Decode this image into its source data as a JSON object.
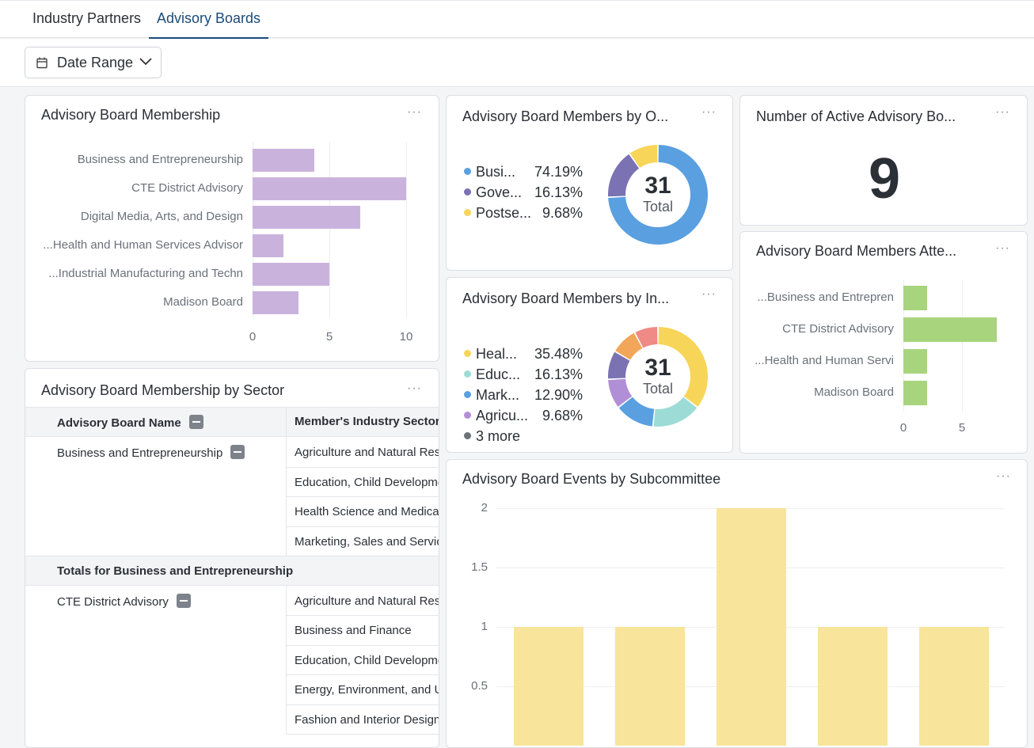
{
  "tabs": [
    "Industry Partners",
    "Advisory Boards"
  ],
  "filter": {
    "date_range_label": "Date Range"
  },
  "membership": {
    "title": "Advisory Board Membership",
    "menu": "···",
    "categories": [
      "Business and Entrepreneurship",
      "CTE District Advisory",
      "Digital Media, Arts, and Design",
      "Health and Human Services Advisor...",
      "Industrial Manufacturing and Techn...",
      "Madison Board"
    ],
    "values": [
      4,
      10,
      7,
      2,
      5,
      3
    ],
    "ticks": [
      "0",
      "5",
      "10"
    ],
    "xlim": [
      0,
      10
    ],
    "color": "#c9b3dd"
  },
  "by_org": {
    "title": "Advisory Board Members by O...",
    "menu": "···",
    "legend": [
      {
        "label": "Busi...",
        "pct": "74.19%",
        "color": "#5a9fe0"
      },
      {
        "label": "Gove...",
        "pct": "16.13%",
        "color": "#7a72b3"
      },
      {
        "label": "Postse...",
        "pct": "9.68%",
        "color": "#f7d558"
      }
    ],
    "total_value": "31",
    "total_label": "Total"
  },
  "active": {
    "title": "Number of Active Advisory Bo...",
    "menu": "···",
    "value": "9"
  },
  "by_industry": {
    "title": "Advisory Board Members by In...",
    "menu": "···",
    "legend": [
      {
        "label": "Heal...",
        "pct": "35.48%",
        "color": "#f7d558"
      },
      {
        "label": "Educ...",
        "pct": "16.13%",
        "color": "#9ddcd6"
      },
      {
        "label": "Mark...",
        "pct": "12.90%",
        "color": "#5a9fe0"
      },
      {
        "label": "Agricu...",
        "pct": "9.68%",
        "color": "#b18fd6"
      }
    ],
    "more": "3 more",
    "more_color": "#6b7079",
    "extra_colors": [
      "#7a72b3",
      "#f2a65a",
      "#ef8a87"
    ],
    "total_value": "31",
    "total_label": "Total"
  },
  "attendance": {
    "title": "Advisory Board Members Atte...",
    "menu": "···",
    "categories": [
      "Business and Entrepren...",
      "CTE District Advisory",
      "Health and Human Servi...",
      "Madison Board"
    ],
    "values": [
      2,
      8,
      2,
      2
    ],
    "ticks": [
      "0",
      "5"
    ],
    "color": "#a8d47e"
  },
  "sector": {
    "title": "Advisory Board Membership by Sector",
    "menu": "···",
    "col1": "Advisory Board Name",
    "col2": "Member's Industry Sector",
    "group1": {
      "name": "Business and Entrepreneurship",
      "sectors": [
        "Agriculture and Natural Res",
        "Education, Child Developme",
        "Health Science and Medical",
        "Marketing, Sales and Service"
      ]
    },
    "totals1": "Totals for Business and Entrepreneurship",
    "group2": {
      "name": "CTE District Advisory",
      "sectors": [
        "Agriculture and Natural Res",
        "Business and Finance",
        "Education, Child Developme",
        "Energy, Environment, and U",
        "Fashion and Interior Design"
      ]
    }
  },
  "events": {
    "title": "Advisory Board Events by Subcommittee",
    "menu": "···",
    "yticks": [
      "2",
      "1.5",
      "1",
      "0.5"
    ],
    "values": [
      1,
      1,
      2,
      1,
      1
    ],
    "color": "#f8e49a"
  },
  "chart_data": [
    {
      "type": "bar",
      "title": "Advisory Board Membership",
      "categories": [
        "Business and Entrepreneurship",
        "CTE District Advisory",
        "Digital Media, Arts, and Design",
        "Health and Human Services Advisor...",
        "Industrial Manufacturing and Techn...",
        "Madison Board"
      ],
      "values": [
        4,
        10,
        7,
        2,
        5,
        3
      ],
      "xlim": [
        0,
        10
      ]
    },
    {
      "type": "pie",
      "title": "Advisory Board Members by O...",
      "categories": [
        "Busi...",
        "Gove...",
        "Postse..."
      ],
      "values": [
        74.19,
        16.13,
        9.68
      ]
    },
    {
      "type": "pie",
      "title": "Advisory Board Members by In...",
      "categories": [
        "Heal...",
        "Educ...",
        "Mark...",
        "Agricu..."
      ],
      "values": [
        35.48,
        16.13,
        12.9,
        9.68
      ]
    },
    {
      "type": "bar",
      "title": "Advisory Board Members Atte...",
      "categories": [
        "Business and Entrepren...",
        "CTE District Advisory",
        "Health and Human Servi...",
        "Madison Board"
      ],
      "values": [
        2,
        8,
        2,
        2
      ]
    },
    {
      "type": "bar",
      "title": "Advisory Board Events by Subcommittee",
      "values": [
        1,
        1,
        2,
        1,
        1
      ],
      "ylim": [
        0,
        2
      ]
    }
  ]
}
